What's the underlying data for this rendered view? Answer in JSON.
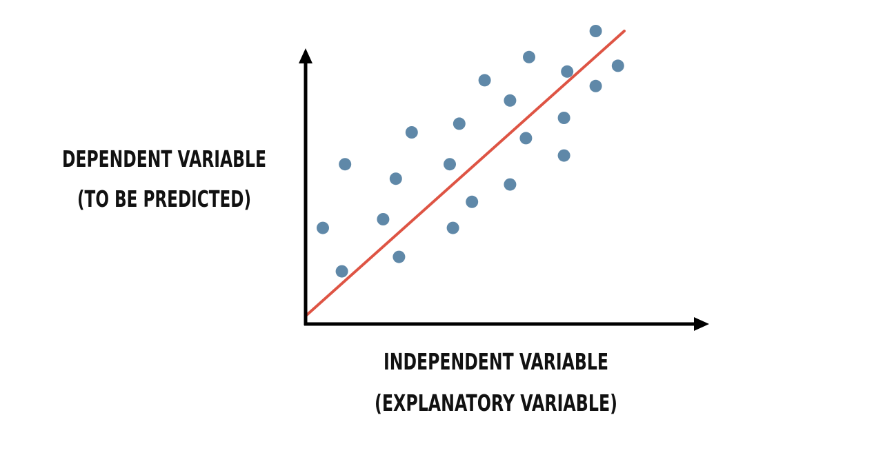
{
  "chart_data": {
    "type": "scatter",
    "title": "",
    "ylabel_lines": [
      "DEPENDENT VARIABLE",
      "(TO BE PREDICTED)"
    ],
    "xlabel_lines": [
      "INDEPENDENT VARIABLE",
      "(EXPLANATORY VARIABLE)"
    ],
    "xlim": [
      0,
      10
    ],
    "ylim": [
      0,
      10
    ],
    "grid": false,
    "legend": "none",
    "points": [
      {
        "x": 0.5,
        "y": 3.2
      },
      {
        "x": 1.1,
        "y": 1.7
      },
      {
        "x": 1.2,
        "y": 5.4
      },
      {
        "x": 2.4,
        "y": 3.5
      },
      {
        "x": 2.8,
        "y": 4.9
      },
      {
        "x": 2.9,
        "y": 2.2
      },
      {
        "x": 3.3,
        "y": 6.5
      },
      {
        "x": 4.5,
        "y": 5.4
      },
      {
        "x": 4.6,
        "y": 3.2
      },
      {
        "x": 4.8,
        "y": 6.8
      },
      {
        "x": 5.2,
        "y": 4.1
      },
      {
        "x": 5.6,
        "y": 8.3
      },
      {
        "x": 6.4,
        "y": 4.7
      },
      {
        "x": 6.4,
        "y": 7.6
      },
      {
        "x": 6.9,
        "y": 6.3
      },
      {
        "x": 7.0,
        "y": 9.1
      },
      {
        "x": 8.1,
        "y": 5.7
      },
      {
        "x": 8.1,
        "y": 7.0
      },
      {
        "x": 8.2,
        "y": 8.6
      },
      {
        "x": 9.1,
        "y": 8.1
      },
      {
        "x": 9.1,
        "y": 10.0
      },
      {
        "x": 9.8,
        "y": 8.8
      }
    ],
    "fit_line": {
      "x": [
        0,
        10
      ],
      "y": [
        0.2,
        10.0
      ]
    },
    "colors": {
      "points": "#5f88a8",
      "fit_line": "#de5444",
      "axes": "#000000"
    }
  }
}
